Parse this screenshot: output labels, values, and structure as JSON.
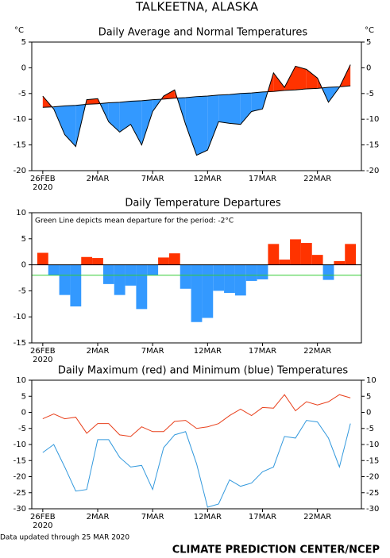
{
  "title": "TALKEETNA, ALASKA",
  "updated": "Data updated through 25 MAR 2020",
  "credit": "CLIMATE PREDICTION CENTER/NCEP",
  "chart_data": [
    {
      "type": "area",
      "title": "Daily Average and Normal Temperatures",
      "y_unit": "°C",
      "right_axis": true,
      "categories": [
        "26FEB",
        null,
        null,
        null,
        null,
        "2MAR",
        null,
        null,
        null,
        null,
        "7MAR",
        null,
        null,
        null,
        null,
        "12MAR",
        null,
        null,
        null,
        null,
        "17MAR",
        null,
        null,
        null,
        null,
        "22MAR",
        null,
        null,
        null
      ],
      "x_sublabel": "2020",
      "values": [
        -5.5,
        -8,
        -13,
        -15.3,
        -6.2,
        -6,
        -10.5,
        -12.5,
        -11,
        -15,
        -8.5,
        -5.5,
        -4.3,
        -11,
        -17,
        -16,
        -10.5,
        -10.8,
        -11,
        -8.5,
        -8,
        -1,
        -3.8,
        0.3,
        -0.3,
        -2,
        -6.7,
        -3.8,
        0.6
      ],
      "normal": [
        -7.7,
        -7.6,
        -7.4,
        -7.3,
        -7.1,
        -7.0,
        -6.8,
        -6.7,
        -6.5,
        -6.4,
        -6.2,
        -6.1,
        -5.9,
        -5.8,
        -5.6,
        -5.5,
        -5.3,
        -5.2,
        -5.0,
        -4.9,
        -4.7,
        -4.6,
        -4.4,
        -4.3,
        -4.1,
        -4.0,
        -3.8,
        -3.7,
        -3.5
      ],
      "above_color": "#ff3300",
      "below_color": "#3399ff",
      "ylim": [
        -20,
        5
      ],
      "yticks": [
        -20,
        -15,
        -10,
        -5,
        0,
        5
      ]
    },
    {
      "type": "bar",
      "title": "Daily Temperature Departures",
      "annotation": "Green Line depicts mean departure for the period: -2°C",
      "mean_departure": -2,
      "mean_color": "#33cc33",
      "categories": [
        "26FEB",
        null,
        null,
        null,
        null,
        "2MAR",
        null,
        null,
        null,
        null,
        "7MAR",
        null,
        null,
        null,
        null,
        "12MAR",
        null,
        null,
        null,
        null,
        "17MAR",
        null,
        null,
        null,
        null,
        "22MAR",
        null,
        null,
        null
      ],
      "x_sublabel": "2020",
      "values": [
        2.3,
        -2,
        -5.8,
        -8,
        1.5,
        1.3,
        -3.7,
        -5.8,
        -4,
        -8.5,
        -2,
        1.4,
        2.2,
        -4.6,
        -11,
        -10.2,
        -5,
        -5.4,
        -5.9,
        -3.1,
        -2.8,
        4,
        1,
        4.9,
        4.2,
        1.9,
        -2.9,
        0.7,
        4
      ],
      "positive_color": "#ff3300",
      "negative_color": "#3399ff",
      "ylim": [
        -15,
        10
      ],
      "yticks": [
        -15,
        -10,
        -5,
        0,
        5,
        10
      ]
    },
    {
      "type": "line",
      "title": "Daily Maximum (red) and Minimum (blue) Temperatures",
      "right_axis": true,
      "categories": [
        "26FEB",
        null,
        null,
        null,
        null,
        "2MAR",
        null,
        null,
        null,
        null,
        "7MAR",
        null,
        null,
        null,
        null,
        "12MAR",
        null,
        null,
        null,
        null,
        "17MAR",
        null,
        null,
        null,
        null,
        "22MAR",
        null,
        null,
        null
      ],
      "x_sublabel": "2020",
      "series": [
        {
          "color": "#e8401c",
          "values": [
            -2,
            -0.5,
            -2,
            -1.5,
            -6.5,
            -3.5,
            -3.5,
            -7,
            -7.5,
            -4.5,
            -6,
            -6,
            -2.8,
            -2.5,
            -5,
            -4.5,
            -3.5,
            -1,
            1,
            -1,
            1.5,
            1.3,
            5.5,
            0.5,
            3.3,
            2.3,
            3.3,
            5.5,
            4.5
          ]
        },
        {
          "color": "#3399dd",
          "values": [
            -12.5,
            -10,
            -17,
            -24.5,
            -24,
            -8.5,
            -8.5,
            -14,
            -17,
            -16.5,
            -24,
            -11,
            -7,
            -6,
            -16,
            -29.5,
            -28.5,
            -21,
            -23,
            -22,
            -18.5,
            -17,
            -7.5,
            -8,
            -2.5,
            -3,
            -8,
            -17,
            -3.5
          ]
        }
      ],
      "ylim": [
        -30,
        10
      ],
      "yticks": [
        -30,
        -25,
        -20,
        -15,
        -10,
        -5,
        0,
        5,
        10
      ]
    }
  ]
}
